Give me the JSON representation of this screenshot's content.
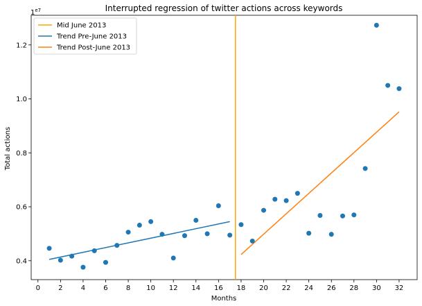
{
  "chart_data": {
    "type": "scatter",
    "title": "Interrupted regression of twitter actions across keywords",
    "xlabel": "Months",
    "ylabel": "Total actions",
    "y_offset_label": "1e7",
    "xlim": [
      -0.6,
      33.6
    ],
    "ylim": [
      3300000,
      13100000
    ],
    "x_ticks": [
      0,
      2,
      4,
      6,
      8,
      10,
      12,
      14,
      16,
      18,
      20,
      22,
      24,
      26,
      28,
      30,
      32
    ],
    "y_ticks": [
      4000000,
      6000000,
      8000000,
      10000000,
      12000000
    ],
    "y_tick_labels": [
      "0.4",
      "0.6",
      "0.8",
      "1.0",
      "1.2"
    ],
    "grid": false,
    "legend_position": "top-left",
    "series": [
      {
        "kind": "points",
        "color": "#1f77b4",
        "x": [
          1,
          2,
          3,
          4,
          5,
          6,
          7,
          8,
          9,
          10,
          11,
          12,
          13,
          14,
          15,
          16,
          17,
          18,
          19,
          20,
          21,
          22,
          23,
          24,
          25,
          26,
          27,
          28,
          29,
          30,
          31,
          32
        ],
        "y": [
          4460000,
          4020000,
          4170000,
          3760000,
          4370000,
          3940000,
          4570000,
          5060000,
          5320000,
          5450000,
          4980000,
          4100000,
          4930000,
          5500000,
          5000000,
          6040000,
          4950000,
          5340000,
          4730000,
          5870000,
          6280000,
          6230000,
          6500000,
          5020000,
          5680000,
          4980000,
          5660000,
          5700000,
          7420000,
          12730000,
          10500000,
          10380000
        ]
      },
      {
        "kind": "line",
        "name": "Trend Pre-June 2013",
        "color": "#1f77b4",
        "x": [
          1,
          17
        ],
        "y": [
          4050000,
          5450000
        ]
      },
      {
        "kind": "line",
        "name": "Trend Post-June 2013",
        "color": "#ff7f0e",
        "x": [
          18,
          32
        ],
        "y": [
          4230000,
          9520000
        ]
      },
      {
        "kind": "vline",
        "name": "Mid June 2013",
        "color": "#ffa500",
        "x": 17.5
      }
    ],
    "legend": [
      {
        "label": "Mid June 2013",
        "color": "#ffa500"
      },
      {
        "label": "Trend Pre-June 2013",
        "color": "#1f77b4"
      },
      {
        "label": "Trend Post-June 2013",
        "color": "#ff7f0e"
      }
    ]
  }
}
